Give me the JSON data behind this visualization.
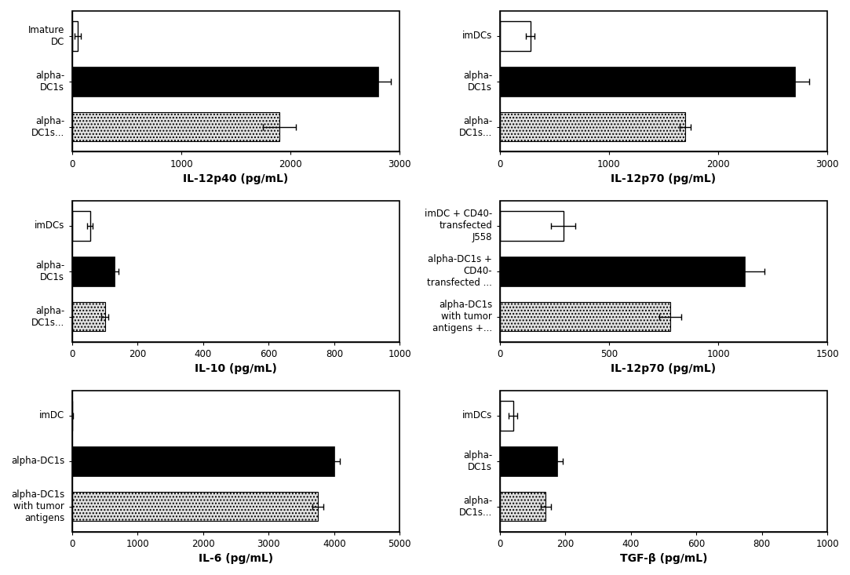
{
  "panels": [
    {
      "title": "IL-12p40 (pg/mL)",
      "labels": [
        "Imature\nDC",
        "alpha-\nDC1s",
        "alpha-\nDC1s..."
      ],
      "values": [
        50,
        2800,
        1900
      ],
      "errors": [
        30,
        120,
        150
      ],
      "colors": [
        "white",
        "black",
        "dotted"
      ],
      "xlim": [
        0,
        3000
      ],
      "xticks": [
        0,
        1000,
        2000,
        3000
      ]
    },
    {
      "title": "IL-12p70 (pg/mL)",
      "labels": [
        "imDCs",
        "alpha-\nDC1s",
        "alpha-\nDC1s..."
      ],
      "values": [
        280,
        2700,
        1700
      ],
      "errors": [
        40,
        130,
        50
      ],
      "colors": [
        "white",
        "black",
        "dotted"
      ],
      "xlim": [
        0,
        3000
      ],
      "xticks": [
        0,
        1000,
        2000,
        3000
      ]
    },
    {
      "title": "IL-10 (pg/mL)",
      "labels": [
        "imDCs",
        "alpha-\nDC1s",
        "alpha-\nDC1s..."
      ],
      "values": [
        55,
        130,
        100
      ],
      "errors": [
        8,
        12,
        10
      ],
      "colors": [
        "white",
        "black",
        "dotted"
      ],
      "xlim": [
        0,
        1000
      ],
      "xticks": [
        0,
        200,
        400,
        600,
        800,
        1000
      ]
    },
    {
      "title": "IL-12p70 (pg/mL)",
      "labels": [
        "imDC + CD40-\ntransfected\nJ558",
        "alpha-DC1s +\nCD40-\ntransfected ...",
        "alpha-DC1s\nwith tumor\nantigens +..."
      ],
      "values": [
        290,
        1120,
        780
      ],
      "errors": [
        55,
        90,
        50
      ],
      "colors": [
        "white",
        "black",
        "dotted"
      ],
      "xlim": [
        0,
        1500
      ],
      "xticks": [
        0,
        500,
        1000,
        1500
      ]
    },
    {
      "title": "IL-6 (pg/mL)",
      "labels": [
        "imDC",
        "alpha-DC1s",
        "alpha-DC1s\nwith tumor\nantigens"
      ],
      "values": [
        5,
        4000,
        3750
      ],
      "errors": [
        5,
        80,
        80
      ],
      "colors": [
        "white",
        "black",
        "dotted"
      ],
      "xlim": [
        0,
        5000
      ],
      "xticks": [
        0,
        1000,
        2000,
        3000,
        4000,
        5000
      ]
    },
    {
      "title": "TGF-β (pg/mL)",
      "labels": [
        "imDCs",
        "alpha-\nDC1s",
        "alpha-\nDC1s..."
      ],
      "values": [
        40,
        175,
        140
      ],
      "errors": [
        12,
        18,
        15
      ],
      "colors": [
        "white",
        "black",
        "dotted"
      ],
      "xlim": [
        0,
        1000
      ],
      "xticks": [
        0,
        200,
        400,
        600,
        800,
        1000
      ]
    }
  ],
  "background_color": "#ffffff",
  "bar_height": 0.65,
  "dotted_facecolor": "#e0e0e0",
  "fontsize_label": 8.5,
  "fontsize_xlabel": 10,
  "fontsize_tick": 8.5
}
